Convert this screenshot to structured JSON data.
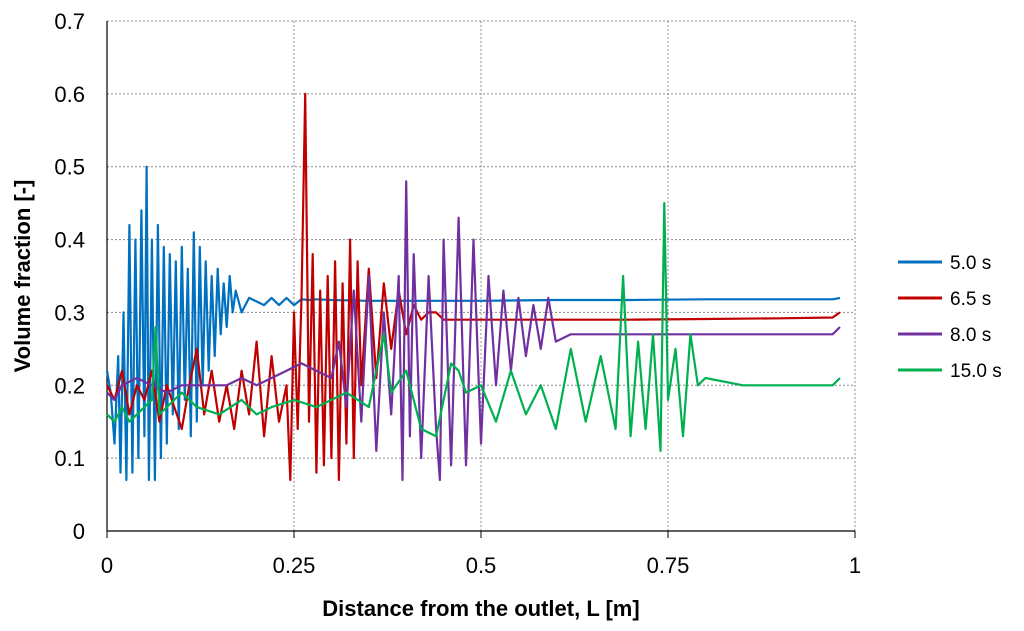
{
  "chart_data": {
    "type": "line",
    "title": "",
    "xlabel": "Distance from the outlet, L [m]",
    "ylabel": "Volume fraction [-]",
    "xlim": [
      0,
      1
    ],
    "ylim": [
      0,
      0.7
    ],
    "xticks": [
      0,
      0.25,
      0.5,
      0.75,
      1
    ],
    "xtick_labels": [
      "0",
      "0.25",
      "0.5",
      "0.75",
      "1"
    ],
    "yticks": [
      0,
      0.1,
      0.2,
      0.3,
      0.4,
      0.5,
      0.6,
      0.7
    ],
    "ytick_labels": [
      "0",
      "0.1",
      "0.2",
      "0.3",
      "0.4",
      "0.5",
      "0.6",
      "0.7"
    ],
    "grid": true,
    "legend_position": "right",
    "series": [
      {
        "name": "5.0 s",
        "color": "#0070c0",
        "x": [
          0.0,
          0.005,
          0.01,
          0.015,
          0.018,
          0.022,
          0.026,
          0.03,
          0.034,
          0.038,
          0.042,
          0.046,
          0.05,
          0.053,
          0.056,
          0.06,
          0.064,
          0.068,
          0.072,
          0.076,
          0.08,
          0.084,
          0.088,
          0.092,
          0.096,
          0.1,
          0.104,
          0.108,
          0.112,
          0.116,
          0.12,
          0.124,
          0.128,
          0.132,
          0.136,
          0.14,
          0.144,
          0.148,
          0.152,
          0.156,
          0.16,
          0.164,
          0.168,
          0.172,
          0.18,
          0.19,
          0.2,
          0.21,
          0.22,
          0.23,
          0.24,
          0.25,
          0.26,
          0.27,
          0.28,
          0.3,
          0.35,
          0.4,
          0.5,
          0.6,
          0.7,
          0.8,
          0.9,
          0.97,
          0.98
        ],
        "y": [
          0.22,
          0.19,
          0.12,
          0.24,
          0.08,
          0.3,
          0.07,
          0.42,
          0.08,
          0.4,
          0.1,
          0.44,
          0.13,
          0.5,
          0.07,
          0.4,
          0.07,
          0.42,
          0.1,
          0.39,
          0.12,
          0.38,
          0.16,
          0.37,
          0.14,
          0.39,
          0.18,
          0.36,
          0.13,
          0.41,
          0.15,
          0.39,
          0.2,
          0.37,
          0.22,
          0.35,
          0.24,
          0.36,
          0.27,
          0.34,
          0.28,
          0.35,
          0.3,
          0.33,
          0.3,
          0.32,
          0.315,
          0.31,
          0.32,
          0.31,
          0.32,
          0.31,
          0.318,
          0.317,
          0.318,
          0.317,
          0.316,
          0.316,
          0.316,
          0.317,
          0.317,
          0.318,
          0.318,
          0.318,
          0.32
        ]
      },
      {
        "name": "6.5 s",
        "color": "#c00000",
        "x": [
          0.0,
          0.01,
          0.02,
          0.03,
          0.04,
          0.05,
          0.06,
          0.07,
          0.08,
          0.09,
          0.1,
          0.11,
          0.12,
          0.13,
          0.14,
          0.15,
          0.16,
          0.17,
          0.18,
          0.19,
          0.2,
          0.21,
          0.22,
          0.23,
          0.24,
          0.245,
          0.25,
          0.255,
          0.26,
          0.265,
          0.27,
          0.275,
          0.28,
          0.285,
          0.29,
          0.295,
          0.3,
          0.305,
          0.31,
          0.315,
          0.32,
          0.325,
          0.33,
          0.335,
          0.34,
          0.35,
          0.36,
          0.37,
          0.38,
          0.39,
          0.4,
          0.41,
          0.42,
          0.43,
          0.44,
          0.45,
          0.5,
          0.6,
          0.7,
          0.8,
          0.9,
          0.97,
          0.98
        ],
        "y": [
          0.2,
          0.18,
          0.22,
          0.16,
          0.2,
          0.18,
          0.22,
          0.15,
          0.2,
          0.17,
          0.14,
          0.2,
          0.25,
          0.16,
          0.22,
          0.15,
          0.2,
          0.14,
          0.22,
          0.16,
          0.26,
          0.13,
          0.24,
          0.15,
          0.2,
          0.07,
          0.3,
          0.14,
          0.32,
          0.6,
          0.15,
          0.38,
          0.08,
          0.33,
          0.09,
          0.35,
          0.1,
          0.37,
          0.07,
          0.34,
          0.12,
          0.4,
          0.1,
          0.37,
          0.2,
          0.36,
          0.21,
          0.34,
          0.25,
          0.33,
          0.27,
          0.31,
          0.29,
          0.3,
          0.3,
          0.29,
          0.29,
          0.29,
          0.29,
          0.291,
          0.292,
          0.293,
          0.3
        ]
      },
      {
        "name": "8.0 s",
        "color": "#7030a0",
        "x": [
          0.0,
          0.01,
          0.02,
          0.04,
          0.06,
          0.08,
          0.1,
          0.12,
          0.14,
          0.16,
          0.18,
          0.2,
          0.22,
          0.24,
          0.26,
          0.28,
          0.3,
          0.31,
          0.32,
          0.33,
          0.34,
          0.35,
          0.36,
          0.37,
          0.38,
          0.39,
          0.395,
          0.4,
          0.405,
          0.41,
          0.42,
          0.43,
          0.44,
          0.445,
          0.45,
          0.46,
          0.47,
          0.48,
          0.49,
          0.5,
          0.51,
          0.52,
          0.53,
          0.54,
          0.55,
          0.56,
          0.57,
          0.58,
          0.59,
          0.6,
          0.62,
          0.65,
          0.7,
          0.8,
          0.9,
          0.97,
          0.98
        ],
        "y": [
          0.19,
          0.18,
          0.2,
          0.21,
          0.2,
          0.19,
          0.2,
          0.2,
          0.2,
          0.2,
          0.21,
          0.2,
          0.21,
          0.22,
          0.23,
          0.22,
          0.21,
          0.26,
          0.17,
          0.33,
          0.15,
          0.35,
          0.11,
          0.3,
          0.16,
          0.35,
          0.07,
          0.48,
          0.13,
          0.38,
          0.1,
          0.35,
          0.14,
          0.07,
          0.4,
          0.09,
          0.43,
          0.09,
          0.4,
          0.12,
          0.35,
          0.2,
          0.33,
          0.22,
          0.32,
          0.24,
          0.31,
          0.25,
          0.32,
          0.26,
          0.27,
          0.27,
          0.27,
          0.27,
          0.27,
          0.27,
          0.28
        ]
      },
      {
        "name": "15.0 s",
        "color": "#00b050",
        "x": [
          0.0,
          0.01,
          0.02,
          0.03,
          0.04,
          0.05,
          0.06,
          0.065,
          0.07,
          0.08,
          0.1,
          0.12,
          0.15,
          0.18,
          0.2,
          0.22,
          0.25,
          0.28,
          0.3,
          0.32,
          0.35,
          0.37,
          0.38,
          0.4,
          0.42,
          0.44,
          0.46,
          0.47,
          0.48,
          0.5,
          0.52,
          0.54,
          0.56,
          0.58,
          0.6,
          0.62,
          0.64,
          0.66,
          0.68,
          0.69,
          0.7,
          0.71,
          0.72,
          0.73,
          0.74,
          0.745,
          0.75,
          0.76,
          0.77,
          0.78,
          0.79,
          0.8,
          0.85,
          0.9,
          0.95,
          0.97,
          0.98
        ],
        "y": [
          0.16,
          0.15,
          0.17,
          0.15,
          0.16,
          0.17,
          0.18,
          0.28,
          0.16,
          0.17,
          0.19,
          0.17,
          0.16,
          0.18,
          0.16,
          0.17,
          0.18,
          0.17,
          0.18,
          0.19,
          0.17,
          0.27,
          0.19,
          0.22,
          0.14,
          0.13,
          0.23,
          0.22,
          0.19,
          0.2,
          0.15,
          0.22,
          0.16,
          0.2,
          0.14,
          0.25,
          0.15,
          0.24,
          0.14,
          0.35,
          0.13,
          0.26,
          0.14,
          0.27,
          0.11,
          0.45,
          0.18,
          0.25,
          0.13,
          0.27,
          0.2,
          0.21,
          0.2,
          0.2,
          0.2,
          0.2,
          0.21
        ]
      }
    ]
  }
}
